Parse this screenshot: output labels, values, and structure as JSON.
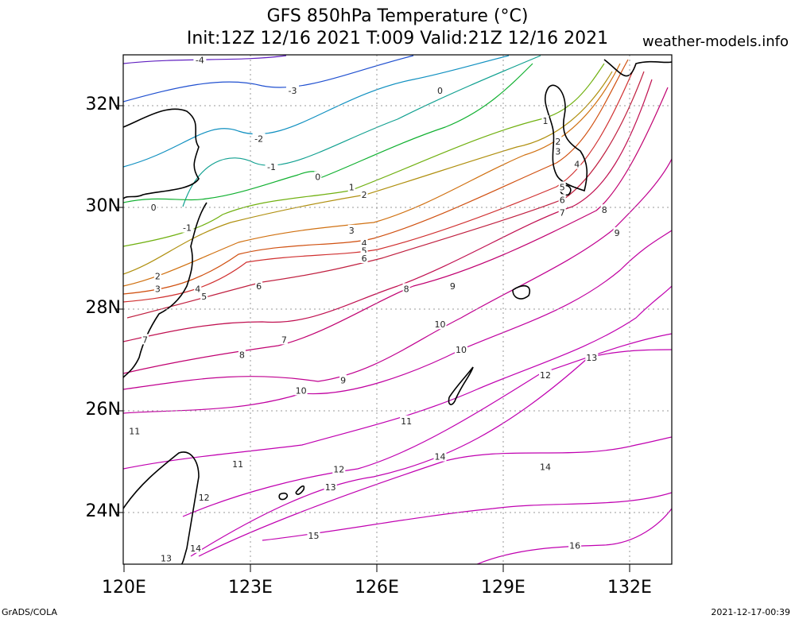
{
  "title_line1": "GFS 850hPa Temperature (°C)",
  "title_line2": "Init:12Z 12/16 2021 T:009 Valid:21Z 12/16 2021",
  "site": "weather-models.info",
  "footer_left": "GrADS/COLA",
  "footer_right": "2021-12-17-00:39",
  "lat_labels": [
    "32N",
    "30N",
    "28N",
    "26N",
    "24N"
  ],
  "lon_labels": [
    "120E",
    "123E",
    "126E",
    "129E",
    "132E"
  ],
  "extent": {
    "lon": [
      120,
      133
    ],
    "lat": [
      23,
      33
    ]
  },
  "contour_labels": [
    {
      "v": "-4",
      "lon": 121.8,
      "lat": 32.9,
      "c": "#6020c0"
    },
    {
      "v": "-3",
      "lon": 124.0,
      "lat": 32.3,
      "c": "#2050d0"
    },
    {
      "v": "-2",
      "lon": 123.2,
      "lat": 31.35,
      "c": "#1090c0"
    },
    {
      "v": "-1",
      "lon": 123.5,
      "lat": 30.8,
      "c": "#10a090"
    },
    {
      "v": "0",
      "lon": 124.6,
      "lat": 30.6,
      "c": "#10b030"
    },
    {
      "v": "0",
      "lon": 127.5,
      "lat": 32.3,
      "c": "#10b030"
    },
    {
      "v": "0",
      "lon": 120.7,
      "lat": 30.0,
      "c": "#10b030"
    },
    {
      "v": "1",
      "lon": 125.4,
      "lat": 30.4,
      "c": "#70b010"
    },
    {
      "v": "1",
      "lon": 130.0,
      "lat": 31.7,
      "c": "#70b010"
    },
    {
      "v": "-1",
      "lon": 121.5,
      "lat": 29.6,
      "c": "#10a090"
    },
    {
      "v": "2",
      "lon": 125.7,
      "lat": 30.25,
      "c": "#b09010"
    },
    {
      "v": "2",
      "lon": 130.3,
      "lat": 31.3,
      "c": "#b09010"
    },
    {
      "v": "2",
      "lon": 120.8,
      "lat": 28.65,
      "c": "#b09010"
    },
    {
      "v": "3",
      "lon": 125.4,
      "lat": 29.55,
      "c": "#d07010"
    },
    {
      "v": "3",
      "lon": 130.3,
      "lat": 31.1,
      "c": "#d07010"
    },
    {
      "v": "3",
      "lon": 120.8,
      "lat": 28.4,
      "c": "#d07010"
    },
    {
      "v": "4",
      "lon": 125.7,
      "lat": 29.3,
      "c": "#d05010"
    },
    {
      "v": "4",
      "lon": 130.75,
      "lat": 30.85,
      "c": "#d05010"
    },
    {
      "v": "4",
      "lon": 121.75,
      "lat": 28.4,
      "c": "#d05010"
    },
    {
      "v": "5",
      "lon": 125.7,
      "lat": 29.15,
      "c": "#d03030"
    },
    {
      "v": "5",
      "lon": 130.4,
      "lat": 30.4,
      "c": "#d03030"
    },
    {
      "v": "5",
      "lon": 121.9,
      "lat": 28.25,
      "c": "#d03030"
    },
    {
      "v": "6",
      "lon": 125.7,
      "lat": 29.0,
      "c": "#c02040"
    },
    {
      "v": "6",
      "lon": 130.4,
      "lat": 30.15,
      "c": "#c02040"
    },
    {
      "v": "6",
      "lon": 123.2,
      "lat": 28.45,
      "c": "#c02040"
    },
    {
      "v": "7",
      "lon": 130.4,
      "lat": 29.9,
      "c": "#c01050"
    },
    {
      "v": "7",
      "lon": 123.8,
      "lat": 27.4,
      "c": "#c01050"
    },
    {
      "v": "7",
      "lon": 120.5,
      "lat": 27.4,
      "c": "#c01050"
    },
    {
      "v": "8",
      "lon": 131.4,
      "lat": 29.95,
      "c": "#c00070"
    },
    {
      "v": "8",
      "lon": 126.7,
      "lat": 28.4,
      "c": "#c00070"
    },
    {
      "v": "8",
      "lon": 122.8,
      "lat": 27.1,
      "c": "#c00070"
    },
    {
      "v": "9",
      "lon": 131.7,
      "lat": 29.5,
      "c": "#c00090"
    },
    {
      "v": "9",
      "lon": 127.8,
      "lat": 28.45,
      "c": "#c00090"
    },
    {
      "v": "9",
      "lon": 125.2,
      "lat": 26.6,
      "c": "#c00090"
    },
    {
      "v": "10",
      "lon": 127.5,
      "lat": 27.7,
      "c": "#c000a0"
    },
    {
      "v": "10",
      "lon": 128.0,
      "lat": 27.2,
      "c": "#c000a0"
    },
    {
      "v": "10",
      "lon": 124.2,
      "lat": 26.4,
      "c": "#c000a0"
    },
    {
      "v": "11",
      "lon": 126.7,
      "lat": 25.8,
      "c": "#c000b0"
    },
    {
      "v": "11",
      "lon": 120.25,
      "lat": 25.6,
      "c": "#c000b0"
    },
    {
      "v": "11",
      "lon": 122.7,
      "lat": 24.95,
      "c": "#c000b0"
    },
    {
      "v": "12",
      "lon": 130.0,
      "lat": 26.7,
      "c": "#c000b0"
    },
    {
      "v": "12",
      "lon": 125.1,
      "lat": 24.85,
      "c": "#c000b0"
    },
    {
      "v": "12",
      "lon": 121.9,
      "lat": 24.3,
      "c": "#c000b0"
    },
    {
      "v": "13",
      "lon": 131.1,
      "lat": 27.05,
      "c": "#c000b0"
    },
    {
      "v": "13",
      "lon": 124.9,
      "lat": 24.5,
      "c": "#c000b0"
    },
    {
      "v": "13",
      "lon": 121.0,
      "lat": 23.1,
      "c": "#c000b0"
    },
    {
      "v": "14",
      "lon": 127.5,
      "lat": 25.1,
      "c": "#c000b0"
    },
    {
      "v": "14",
      "lon": 130.0,
      "lat": 24.9,
      "c": "#c000b0"
    },
    {
      "v": "14",
      "lon": 121.7,
      "lat": 23.3,
      "c": "#c000b0"
    },
    {
      "v": "15",
      "lon": 124.5,
      "lat": 23.55,
      "c": "#c000b0"
    },
    {
      "v": "16",
      "lon": 130.7,
      "lat": 23.35,
      "c": "#c000b0"
    }
  ]
}
